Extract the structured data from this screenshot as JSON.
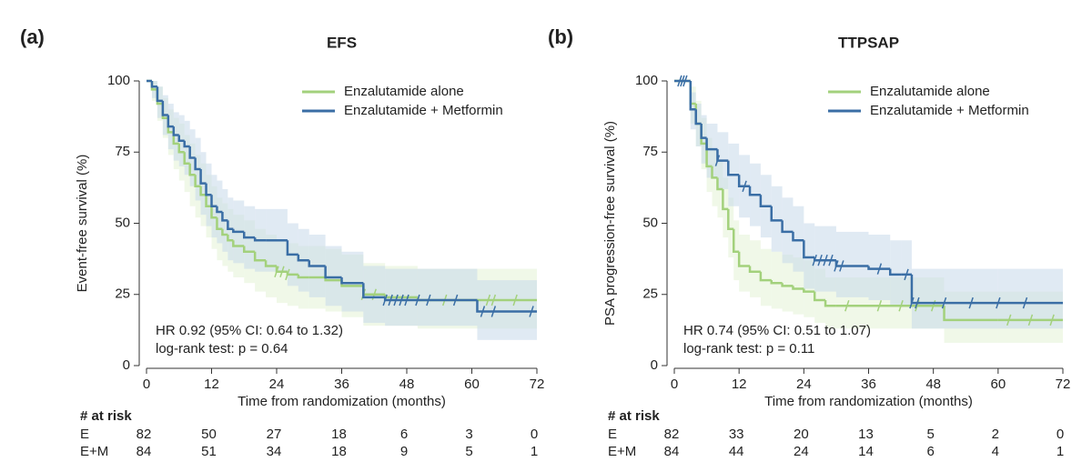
{
  "chart_data": [
    {
      "type": "step",
      "panel_label": "(a)",
      "title": "EFS",
      "xlabel": "Time from randomization (months)",
      "ylabel": "Event-free survival (%)",
      "xlim": [
        0,
        72
      ],
      "xticks": [
        0,
        12,
        24,
        36,
        48,
        60,
        72
      ],
      "ylim": [
        0,
        100
      ],
      "yticks": [
        0,
        25,
        50,
        75,
        100
      ],
      "legend": "upper right",
      "annotations": [
        "HR 0.92 (95% CI: 0.64 to 1.32)",
        "log-rank test: p =  0.64"
      ],
      "series": [
        {
          "name": "Enzalutamide alone",
          "color": "#a3d17c",
          "band_color": "#e4f2d6",
          "x": [
            0,
            1,
            2,
            3,
            4,
            5,
            6,
            7,
            8,
            9,
            10,
            11,
            12,
            13,
            14,
            15,
            16,
            18,
            20,
            22,
            24,
            26,
            28,
            30,
            33,
            36,
            40,
            44,
            50,
            60,
            72
          ],
          "values": [
            100,
            97,
            92,
            87,
            82,
            78,
            75,
            71,
            67,
            63,
            60,
            56,
            52,
            48,
            46,
            44,
            42,
            40,
            37,
            35,
            33,
            32,
            31,
            31,
            30,
            28,
            25,
            24,
            23,
            23,
            23
          ],
          "lower": [
            100,
            93,
            86,
            80,
            74,
            69,
            65,
            61,
            56,
            52,
            49,
            45,
            41,
            37,
            35,
            33,
            31,
            29,
            26,
            24,
            22,
            21,
            20,
            20,
            19,
            17,
            14,
            14,
            13,
            13,
            13
          ],
          "upper": [
            100,
            100,
            98,
            94,
            90,
            87,
            85,
            81,
            78,
            74,
            71,
            67,
            63,
            59,
            57,
            55,
            53,
            51,
            48,
            46,
            44,
            43,
            42,
            42,
            41,
            39,
            36,
            35,
            34,
            34,
            34
          ],
          "censor": [
            24,
            25,
            26,
            40,
            42,
            55,
            63,
            64,
            68
          ]
        },
        {
          "name": "Enzalutamide + Metformin",
          "color": "#3a6ea5",
          "band_color": "#c6d8ea",
          "x": [
            0,
            1,
            2,
            3,
            4,
            5,
            6,
            7,
            8,
            9,
            10,
            11,
            12,
            13,
            14,
            15,
            16,
            18,
            20,
            22,
            24,
            26,
            28,
            30,
            33,
            36,
            40,
            44,
            50,
            61,
            72
          ],
          "values": [
            100,
            98,
            93,
            88,
            84,
            81,
            79,
            77,
            73,
            69,
            64,
            60,
            56,
            54,
            51,
            48,
            47,
            45,
            44,
            44,
            44,
            39,
            37,
            35,
            31,
            29,
            24,
            23,
            23,
            19,
            19
          ],
          "lower": [
            100,
            94,
            87,
            81,
            76,
            72,
            70,
            67,
            63,
            58,
            53,
            49,
            45,
            43,
            40,
            37,
            36,
            34,
            33,
            33,
            33,
            28,
            26,
            24,
            21,
            19,
            15,
            14,
            14,
            9,
            9
          ],
          "upper": [
            100,
            100,
            98,
            95,
            92,
            89,
            88,
            86,
            83,
            80,
            75,
            71,
            67,
            65,
            62,
            59,
            58,
            56,
            55,
            55,
            55,
            50,
            48,
            46,
            42,
            40,
            35,
            34,
            34,
            30,
            30
          ],
          "censor": [
            44,
            45,
            46,
            47,
            48,
            50,
            52,
            57,
            62,
            64,
            71
          ]
        }
      ],
      "risk_table": {
        "title": "# at risk",
        "rows": [
          {
            "label": "E",
            "values": [
              82,
              50,
              27,
              18,
              6,
              3,
              0
            ]
          },
          {
            "label": "E+M",
            "values": [
              84,
              51,
              34,
              18,
              9,
              5,
              1
            ]
          }
        ]
      }
    },
    {
      "type": "step",
      "panel_label": "(b)",
      "title": "TTPSAP",
      "xlabel": "Time from randomization (months)",
      "ylabel": "PSA progression-free survival (%)",
      "xlim": [
        0,
        72
      ],
      "xticks": [
        0,
        12,
        24,
        36,
        48,
        60,
        72
      ],
      "ylim": [
        0,
        100
      ],
      "yticks": [
        0,
        25,
        50,
        75,
        100
      ],
      "legend": "upper right",
      "annotations": [
        "HR 0.74 (95% CI: 0.51 to 1.07)",
        "log-rank test: p =  0.11"
      ],
      "series": [
        {
          "name": "Enzalutamide alone",
          "color": "#a3d17c",
          "band_color": "#e4f2d6",
          "x": [
            0,
            2,
            3,
            4,
            5,
            6,
            7,
            8,
            9,
            10,
            11,
            12,
            14,
            16,
            18,
            20,
            22,
            24,
            26,
            28,
            30,
            36,
            42,
            50,
            60,
            72
          ],
          "values": [
            100,
            100,
            92,
            85,
            78,
            70,
            66,
            62,
            55,
            48,
            40,
            35,
            33,
            30,
            29,
            28,
            27,
            26,
            23,
            21,
            21,
            21,
            21,
            16,
            16,
            16
          ],
          "lower": [
            100,
            100,
            85,
            77,
            69,
            61,
            56,
            52,
            45,
            38,
            30,
            26,
            24,
            21,
            20,
            19,
            18,
            17,
            15,
            13,
            13,
            13,
            13,
            8,
            8,
            8
          ],
          "upper": [
            100,
            100,
            98,
            93,
            87,
            80,
            76,
            72,
            66,
            59,
            51,
            46,
            44,
            41,
            40,
            39,
            38,
            37,
            34,
            31,
            31,
            31,
            31,
            26,
            26,
            26
          ],
          "censor": [
            32,
            38,
            42,
            45,
            48,
            62,
            66,
            70
          ]
        },
        {
          "name": "Enzalutamide + Metformin",
          "color": "#3a6ea5",
          "band_color": "#c6d8ea",
          "x": [
            0,
            2,
            3,
            4,
            5,
            6,
            8,
            10,
            12,
            14,
            16,
            18,
            20,
            22,
            24,
            26,
            30,
            36,
            40,
            42,
            44,
            50,
            60,
            72
          ],
          "values": [
            100,
            100,
            90,
            85,
            80,
            76,
            72,
            67,
            63,
            60,
            56,
            51,
            47,
            44,
            38,
            37,
            35,
            34,
            32,
            32,
            22,
            22,
            22,
            22
          ],
          "lower": [
            100,
            100,
            83,
            77,
            71,
            66,
            62,
            56,
            52,
            49,
            45,
            40,
            36,
            33,
            27,
            26,
            24,
            23,
            21,
            21,
            13,
            13,
            13,
            13
          ],
          "upper": [
            100,
            100,
            96,
            92,
            88,
            85,
            82,
            78,
            74,
            71,
            67,
            63,
            59,
            56,
            50,
            49,
            47,
            46,
            44,
            44,
            34,
            34,
            34,
            34
          ],
          "censor": [
            1,
            1.5,
            2,
            8,
            13,
            26,
            27,
            28,
            29,
            30,
            31,
            38,
            43,
            44,
            45,
            50,
            55,
            60,
            65
          ]
        }
      ],
      "risk_table": {
        "title": "# at risk",
        "rows": [
          {
            "label": "E",
            "values": [
              82,
              33,
              20,
              13,
              5,
              2,
              0
            ]
          },
          {
            "label": "E+M",
            "values": [
              84,
              44,
              24,
              14,
              6,
              4,
              1
            ]
          }
        ]
      }
    }
  ]
}
